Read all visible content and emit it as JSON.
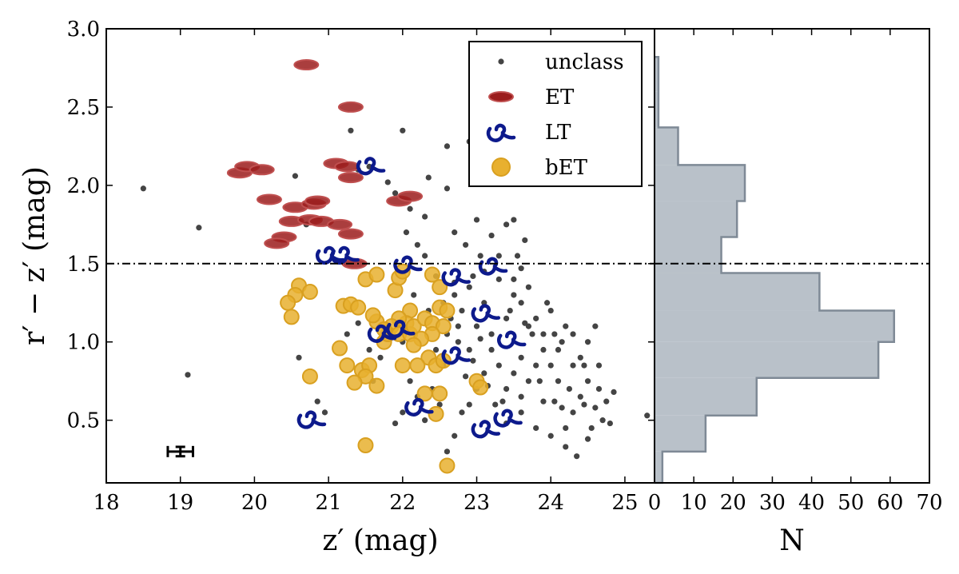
{
  "chart_data": [
    {
      "type": "scatter",
      "panel": "main",
      "xlabel": "z′ (mag)",
      "ylabel": "r′ − z′ (mag)",
      "xlim": [
        18,
        25.4
      ],
      "ylim": [
        0.1,
        3.0
      ],
      "xticks": [
        18,
        19,
        20,
        21,
        22,
        23,
        24,
        25
      ],
      "yticks": [
        0.5,
        1.0,
        1.5,
        2.0,
        2.5,
        3.0
      ],
      "xtick_labels": [
        "18",
        "19",
        "20",
        "21",
        "22",
        "23",
        "24",
        "25"
      ],
      "ytick_labels": [
        "0.5",
        "1.0",
        "1.5",
        "2.0",
        "2.5",
        "3.0"
      ],
      "hline": 1.5,
      "legend": [
        "unclass",
        "ET",
        "LT",
        "bET"
      ],
      "legend_position": "top-right",
      "errorbar": {
        "x": 19.0,
        "y": 0.3,
        "xerr": 0.17,
        "yerr": 0.03
      },
      "colors": {
        "unclass": "#444444",
        "ET": "#9b1c1c",
        "LT": "#0d1a8c",
        "bET": "#e8b02f"
      },
      "series": [
        {
          "name": "unclass",
          "points": [
            [
              18.5,
              1.98
            ],
            [
              19.25,
              1.73
            ],
            [
              19.1,
              0.79
            ],
            [
              20.6,
              0.9
            ],
            [
              20.55,
              2.06
            ],
            [
              20.7,
              1.75
            ],
            [
              21.3,
              2.35
            ],
            [
              21.4,
              2.1
            ],
            [
              21.55,
              2.12
            ],
            [
              21.8,
              2.02
            ],
            [
              22.0,
              2.35
            ],
            [
              21.9,
              1.95
            ],
            [
              22.1,
              1.85
            ],
            [
              22.05,
              1.7
            ],
            [
              22.3,
              1.8
            ],
            [
              22.35,
              2.05
            ],
            [
              22.2,
              1.62
            ],
            [
              22.6,
              1.98
            ],
            [
              22.3,
              1.55
            ],
            [
              22.6,
              2.25
            ],
            [
              22.7,
              1.7
            ],
            [
              22.85,
              1.62
            ],
            [
              22.9,
              2.28
            ],
            [
              23.0,
              1.78
            ],
            [
              23.2,
              1.68
            ],
            [
              23.3,
              1.55
            ],
            [
              23.4,
              1.75
            ],
            [
              23.5,
              1.78
            ],
            [
              23.55,
              1.55
            ],
            [
              23.6,
              1.47
            ],
            [
              23.65,
              1.65
            ],
            [
              23.3,
              1.4
            ],
            [
              23.1,
              1.45
            ],
            [
              22.9,
              1.35
            ],
            [
              22.7,
              1.3
            ],
            [
              22.8,
              1.2
            ],
            [
              22.65,
              1.15
            ],
            [
              22.6,
              1.05
            ],
            [
              22.75,
              1.0
            ],
            [
              22.9,
              0.95
            ],
            [
              23.0,
              1.1
            ],
            [
              23.1,
              1.25
            ],
            [
              23.2,
              1.05
            ],
            [
              23.4,
              1.15
            ],
            [
              23.5,
              1.3
            ],
            [
              23.6,
              1.25
            ],
            [
              23.7,
              1.35
            ],
            [
              23.8,
              1.15
            ],
            [
              23.9,
              1.05
            ],
            [
              24.0,
              1.2
            ],
            [
              24.1,
              0.95
            ],
            [
              24.2,
              1.1
            ],
            [
              24.3,
              1.05
            ],
            [
              24.4,
              0.9
            ],
            [
              24.5,
              1.0
            ],
            [
              24.6,
              1.1
            ],
            [
              24.65,
              0.85
            ],
            [
              24.5,
              0.75
            ],
            [
              24.4,
              0.65
            ],
            [
              24.3,
              0.55
            ],
            [
              24.2,
              0.45
            ],
            [
              24.1,
              0.75
            ],
            [
              24.0,
              0.85
            ],
            [
              23.9,
              0.95
            ],
            [
              23.8,
              0.85
            ],
            [
              23.7,
              0.75
            ],
            [
              23.6,
              0.9
            ],
            [
              23.5,
              0.8
            ],
            [
              23.4,
              0.7
            ],
            [
              23.3,
              0.85
            ],
            [
              23.2,
              0.95
            ],
            [
              23.1,
              0.8
            ],
            [
              23.0,
              0.7
            ],
            [
              22.9,
              0.6
            ],
            [
              22.8,
              0.55
            ],
            [
              22.7,
              0.4
            ],
            [
              22.6,
              0.3
            ],
            [
              22.5,
              0.6
            ],
            [
              22.4,
              0.7
            ],
            [
              22.3,
              0.5
            ],
            [
              22.2,
              0.65
            ],
            [
              22.1,
              0.75
            ],
            [
              22.0,
              0.55
            ],
            [
              21.9,
              0.48
            ],
            [
              22.0,
              1.0
            ],
            [
              21.8,
              1.1
            ],
            [
              21.7,
              0.9
            ],
            [
              21.6,
              0.75
            ],
            [
              23.25,
              0.6
            ],
            [
              23.4,
              0.48
            ],
            [
              23.6,
              0.55
            ],
            [
              23.8,
              0.45
            ],
            [
              24.0,
              0.4
            ],
            [
              24.2,
              0.33
            ],
            [
              24.35,
              0.27
            ],
            [
              24.5,
              0.38
            ],
            [
              24.7,
              0.5
            ],
            [
              24.8,
              0.48
            ],
            [
              24.85,
              0.68
            ],
            [
              24.6,
              0.58
            ],
            [
              24.3,
              0.85
            ],
            [
              24.15,
              1.0
            ],
            [
              23.95,
              1.25
            ],
            [
              23.75,
              1.05
            ],
            [
              23.65,
              1.12
            ],
            [
              23.85,
              0.75
            ],
            [
              24.05,
              0.62
            ],
            [
              24.25,
              0.7
            ],
            [
              24.45,
              0.6
            ],
            [
              24.55,
              0.45
            ],
            [
              24.65,
              0.7
            ],
            [
              24.75,
              0.62
            ],
            [
              23.6,
              0.65
            ],
            [
              23.35,
              0.62
            ],
            [
              23.15,
              0.72
            ],
            [
              22.95,
              0.88
            ],
            [
              22.85,
              0.78
            ],
            [
              22.55,
              0.85
            ],
            [
              22.45,
              0.95
            ],
            [
              22.35,
              1.2
            ],
            [
              22.15,
              1.3
            ],
            [
              22.45,
              1.42
            ],
            [
              22.55,
              1.25
            ],
            [
              22.7,
              1.38
            ],
            [
              22.95,
              1.42
            ],
            [
              23.05,
              1.55
            ],
            [
              23.5,
              1.4
            ],
            [
              23.7,
              1.1
            ],
            [
              20.85,
              0.62
            ],
            [
              20.95,
              0.55
            ],
            [
              21.4,
              1.12
            ],
            [
              21.25,
              1.05
            ],
            [
              21.55,
              0.95
            ],
            [
              24.05,
              1.05
            ],
            [
              24.45,
              0.85
            ],
            [
              25.3,
              0.53
            ],
            [
              23.45,
              1.2
            ],
            [
              23.05,
              1.02
            ],
            [
              22.75,
              1.1
            ],
            [
              24.15,
              0.58
            ],
            [
              23.9,
              0.62
            ]
          ]
        },
        {
          "name": "ET",
          "points": [
            [
              20.7,
              2.77
            ],
            [
              21.3,
              2.5
            ],
            [
              19.8,
              2.08
            ],
            [
              19.9,
              2.12
            ],
            [
              20.1,
              2.1
            ],
            [
              21.1,
              2.14
            ],
            [
              21.25,
              2.12
            ],
            [
              21.3,
              2.05
            ],
            [
              20.2,
              1.91
            ],
            [
              20.55,
              1.86
            ],
            [
              20.8,
              1.88
            ],
            [
              20.85,
              1.9
            ],
            [
              21.95,
              1.9
            ],
            [
              22.1,
              1.93
            ],
            [
              20.5,
              1.77
            ],
            [
              20.75,
              1.78
            ],
            [
              20.9,
              1.77
            ],
            [
              21.15,
              1.75
            ],
            [
              20.4,
              1.67
            ],
            [
              20.3,
              1.63
            ],
            [
              21.3,
              1.69
            ],
            [
              21.35,
              1.5
            ]
          ]
        },
        {
          "name": "LT",
          "points": [
            [
              21.55,
              2.14
            ],
            [
              21.0,
              1.57
            ],
            [
              21.2,
              1.57
            ],
            [
              22.05,
              1.51
            ],
            [
              22.7,
              1.43
            ],
            [
              23.2,
              1.5
            ],
            [
              23.1,
              1.2
            ],
            [
              21.7,
              1.07
            ],
            [
              21.95,
              1.1
            ],
            [
              23.45,
              1.03
            ],
            [
              22.7,
              0.93
            ],
            [
              22.2,
              0.6
            ],
            [
              23.4,
              0.53
            ],
            [
              23.1,
              0.46
            ],
            [
              20.75,
              0.52
            ]
          ]
        },
        {
          "name": "bET",
          "points": [
            [
              20.6,
              1.36
            ],
            [
              20.55,
              1.3
            ],
            [
              20.75,
              1.32
            ],
            [
              20.45,
              1.25
            ],
            [
              20.5,
              1.16
            ],
            [
              21.2,
              1.23
            ],
            [
              21.3,
              1.24
            ],
            [
              21.4,
              1.22
            ],
            [
              21.5,
              1.4
            ],
            [
              21.65,
              1.43
            ],
            [
              21.9,
              1.33
            ],
            [
              21.95,
              1.41
            ],
            [
              22.0,
              1.45
            ],
            [
              22.4,
              1.43
            ],
            [
              22.5,
              1.35
            ],
            [
              22.1,
              1.2
            ],
            [
              22.05,
              1.12
            ],
            [
              21.95,
              1.15
            ],
            [
              21.85,
              1.1
            ],
            [
              21.75,
              1.0
            ],
            [
              21.8,
              1.05
            ],
            [
              21.95,
              1.05
            ],
            [
              22.1,
              1.05
            ],
            [
              22.15,
              1.1
            ],
            [
              22.3,
              1.15
            ],
            [
              22.4,
              1.12
            ],
            [
              22.5,
              1.22
            ],
            [
              22.6,
              1.2
            ],
            [
              22.55,
              1.1
            ],
            [
              22.4,
              1.05
            ],
            [
              22.35,
              0.9
            ],
            [
              22.45,
              0.85
            ],
            [
              22.55,
              0.88
            ],
            [
              22.2,
              0.85
            ],
            [
              21.65,
              1.13
            ],
            [
              21.6,
              1.17
            ],
            [
              21.75,
              1.08
            ],
            [
              21.15,
              0.96
            ],
            [
              21.25,
              0.85
            ],
            [
              21.45,
              0.82
            ],
            [
              21.55,
              0.85
            ],
            [
              21.5,
              0.78
            ],
            [
              21.65,
              0.72
            ],
            [
              21.35,
              0.74
            ],
            [
              22.0,
              0.85
            ],
            [
              22.3,
              0.67
            ],
            [
              22.5,
              0.67
            ],
            [
              22.45,
              0.54
            ],
            [
              23.0,
              0.75
            ],
            [
              23.05,
              0.71
            ],
            [
              20.75,
              0.78
            ],
            [
              21.5,
              0.34
            ],
            [
              22.6,
              0.21
            ],
            [
              22.25,
              1.02
            ],
            [
              22.15,
              0.98
            ]
          ]
        }
      ]
    },
    {
      "type": "histogram",
      "panel": "side",
      "orientation": "horizontal",
      "xlabel": "N",
      "xlim": [
        0,
        70
      ],
      "xticks": [
        0,
        10,
        20,
        30,
        40,
        50,
        60,
        70
      ],
      "xtick_labels": [
        "0",
        "10",
        "20",
        "30",
        "40",
        "50",
        "60",
        "70"
      ],
      "hline": 1.5,
      "fill_color": "#b9c1c9",
      "edge_color": "#7f8a96",
      "bins": [
        {
          "y0": 0.1,
          "y1": 0.3,
          "count": 2
        },
        {
          "y0": 0.3,
          "y1": 0.53,
          "count": 13
        },
        {
          "y0": 0.53,
          "y1": 0.77,
          "count": 26
        },
        {
          "y0": 0.77,
          "y1": 1.0,
          "count": 57
        },
        {
          "y0": 1.0,
          "y1": 1.2,
          "count": 61
        },
        {
          "y0": 1.2,
          "y1": 1.44,
          "count": 42
        },
        {
          "y0": 1.44,
          "y1": 1.67,
          "count": 17
        },
        {
          "y0": 1.67,
          "y1": 1.9,
          "count": 21
        },
        {
          "y0": 1.9,
          "y1": 2.13,
          "count": 23
        },
        {
          "y0": 2.13,
          "y1": 2.37,
          "count": 6
        },
        {
          "y0": 2.37,
          "y1": 2.6,
          "count": 1
        },
        {
          "y0": 2.6,
          "y1": 2.82,
          "count": 1
        }
      ]
    }
  ]
}
